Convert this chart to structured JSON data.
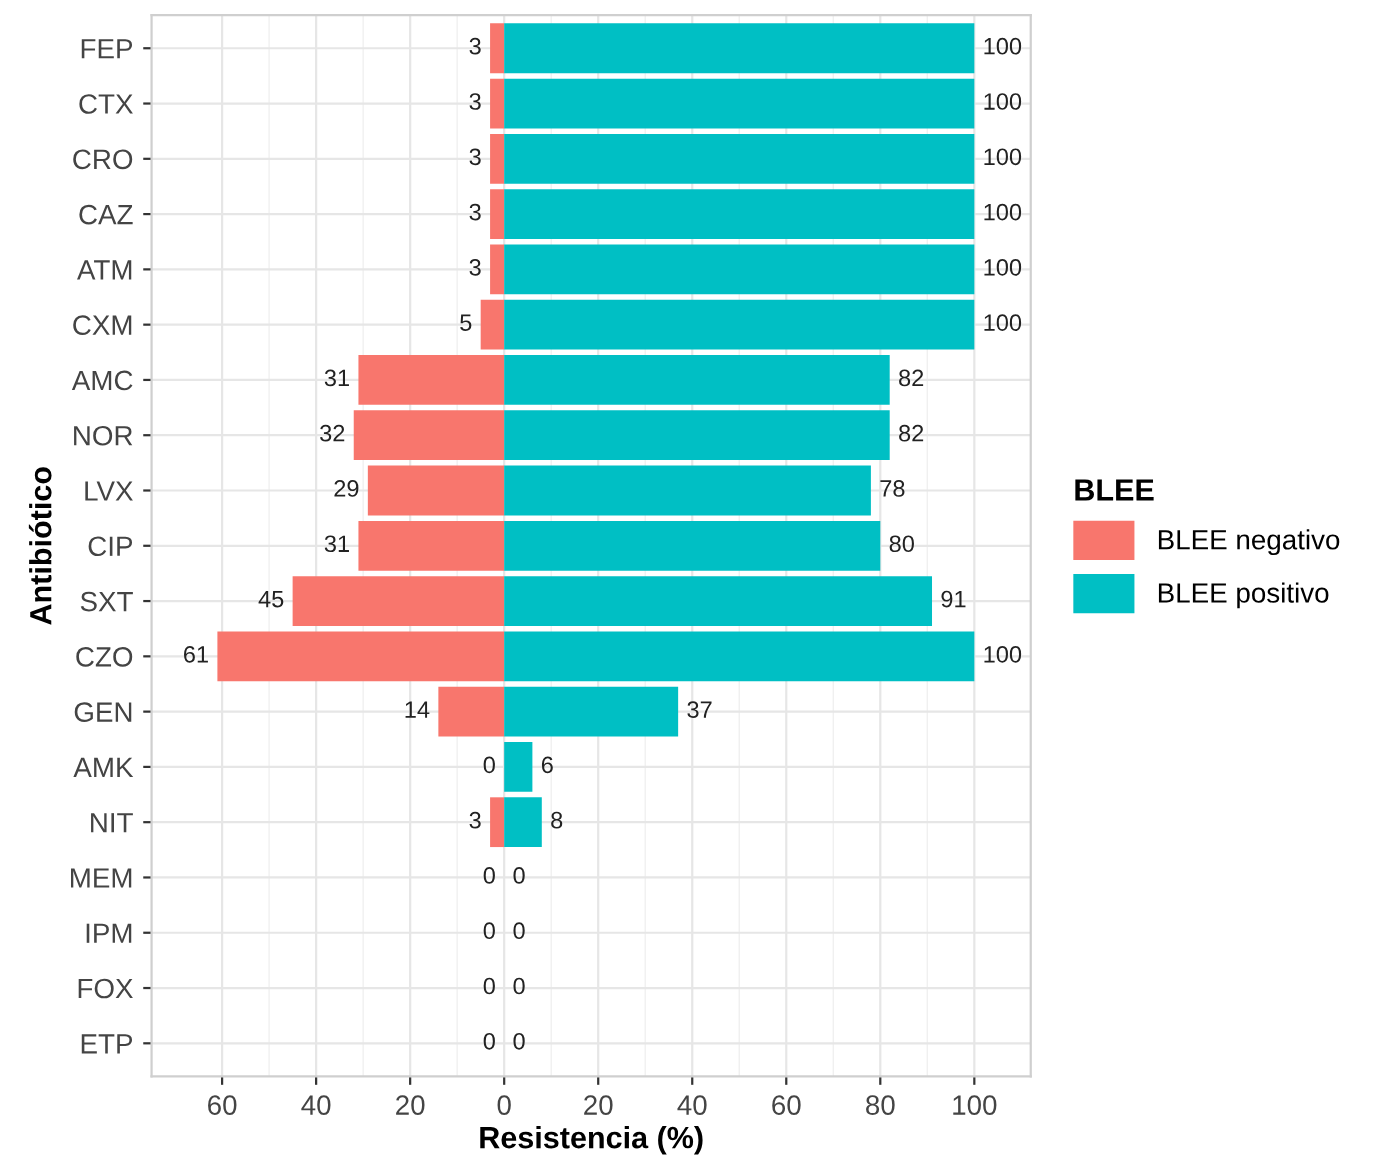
{
  "chart_data": {
    "type": "bar",
    "orientation": "horizontal",
    "xlabel": "Resistencia (%)",
    "ylabel": "Antibiótico",
    "legend_title": "BLEE",
    "legend": "right",
    "categories": [
      "FEP",
      "CTX",
      "CRO",
      "CAZ",
      "ATM",
      "CXM",
      "AMC",
      "NOR",
      "LVX",
      "CIP",
      "SXT",
      "CZO",
      "GEN",
      "AMK",
      "NIT",
      "MEM",
      "IPM",
      "FOX",
      "ETP"
    ],
    "series": [
      {
        "name": "BLEE negativo",
        "color": "#f8766d",
        "values": [
          3,
          3,
          3,
          3,
          3,
          5,
          31,
          32,
          29,
          31,
          45,
          61,
          14,
          0,
          3,
          0,
          0,
          0,
          0
        ],
        "base": [
          -3,
          -3,
          -3,
          -3,
          -3,
          -5,
          -31,
          -32,
          -29,
          -31,
          -45,
          -61,
          -14,
          null,
          -3,
          null,
          null,
          null,
          null
        ],
        "value_labels": [
          "3",
          "3",
          "3",
          "3",
          "3",
          "5",
          "31",
          "32",
          "29",
          "31",
          "45",
          "61",
          "14",
          "0",
          "3",
          "0",
          "0",
          "0",
          "0"
        ]
      },
      {
        "name": "BLEE positivo",
        "color": "#00bfc4",
        "values": [
          100,
          100,
          100,
          100,
          100,
          100,
          82,
          82,
          78,
          80,
          91,
          100,
          37,
          6,
          8,
          0,
          0,
          0,
          0
        ],
        "value_labels": [
          "100",
          "100",
          "100",
          "100",
          "100",
          "100",
          "82",
          "82",
          "78",
          "80",
          "91",
          "100",
          "37",
          "6",
          "8",
          "0",
          "0",
          "0",
          "0"
        ]
      }
    ],
    "xlim": [
      -75,
      112
    ],
    "xticks": [
      {
        "value": -60,
        "label": "60"
      },
      {
        "value": -40,
        "label": "40"
      },
      {
        "value": -20,
        "label": "20"
      },
      0,
      20,
      40,
      60,
      80,
      100
    ],
    "grid": true
  }
}
